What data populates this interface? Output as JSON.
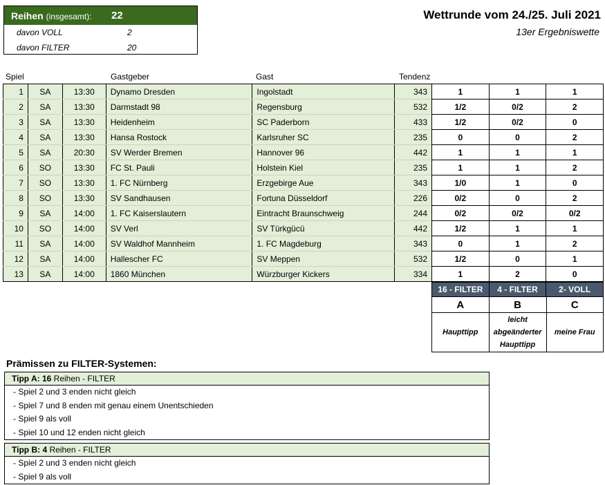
{
  "summary": {
    "label_bold": "Reihen",
    "label_small": "(insgesamt):",
    "total": "22",
    "rows": [
      {
        "label": "davon VOLL",
        "value": "2"
      },
      {
        "label": "davon FILTER",
        "value": "20"
      }
    ]
  },
  "title": "Wettrunde vom 24./25. Juli 2021",
  "subtitle": "13er Ergebniswette",
  "columns": {
    "spiel": "Spiel",
    "gastgeber": "Gastgeber",
    "gast": "Gast",
    "tendenz": "Tendenz"
  },
  "games": [
    {
      "nr": "1",
      "day": "SA",
      "time": "13:30",
      "home": "Dynamo Dresden",
      "away": "Ingolstadt",
      "tendenz": "343",
      "tips": [
        "1",
        "1",
        "1"
      ]
    },
    {
      "nr": "2",
      "day": "SA",
      "time": "13:30",
      "home": "Darmstadt 98",
      "away": "Regensburg",
      "tendenz": "532",
      "tips": [
        "1/2",
        "0/2",
        "2"
      ]
    },
    {
      "nr": "3",
      "day": "SA",
      "time": "13:30",
      "home": "Heidenheim",
      "away": "SC Paderborn",
      "tendenz": "433",
      "tips": [
        "1/2",
        "0/2",
        "0"
      ]
    },
    {
      "nr": "4",
      "day": "SA",
      "time": "13:30",
      "home": "Hansa Rostock",
      "away": "Karlsruher SC",
      "tendenz": "235",
      "tips": [
        "0",
        "0",
        "2"
      ]
    },
    {
      "nr": "5",
      "day": "SA",
      "time": "20:30",
      "home": "SV Werder Bremen",
      "away": "Hannover 96",
      "tendenz": "442",
      "tips": [
        "1",
        "1",
        "1"
      ]
    },
    {
      "nr": "6",
      "day": "SO",
      "time": "13:30",
      "home": "FC St. Pauli",
      "away": "Holstein Kiel",
      "tendenz": "235",
      "tips": [
        "1",
        "1",
        "2"
      ]
    },
    {
      "nr": "7",
      "day": "SO",
      "time": "13:30",
      "home": "1. FC Nürnberg",
      "away": "Erzgebirge Aue",
      "tendenz": "343",
      "tips": [
        "1/0",
        "1",
        "0"
      ]
    },
    {
      "nr": "8",
      "day": "SO",
      "time": "13:30",
      "home": "SV Sandhausen",
      "away": "Fortuna Düsseldorf",
      "tendenz": "226",
      "tips": [
        "0/2",
        "0",
        "2"
      ]
    },
    {
      "nr": "9",
      "day": "SA",
      "time": "14:00",
      "home": "1. FC Kaiserslautern",
      "away": "Eintracht Braunschweig",
      "tendenz": "244",
      "tips": [
        "0/2",
        "0/2",
        "0/2"
      ]
    },
    {
      "nr": "10",
      "day": "SO",
      "time": "14:00",
      "home": "SV Verl",
      "away": "SV Türkgücü",
      "tendenz": "442",
      "tips": [
        "1/2",
        "1",
        "1"
      ]
    },
    {
      "nr": "11",
      "day": "SA",
      "time": "14:00",
      "home": "SV Waldhof Mannheim",
      "away": "1. FC Magdeburg",
      "tendenz": "343",
      "tips": [
        "0",
        "1",
        "2"
      ]
    },
    {
      "nr": "12",
      "day": "SA",
      "time": "14:00",
      "home": "Hallescher FC",
      "away": "SV Meppen",
      "tendenz": "532",
      "tips": [
        "1/2",
        "0",
        "1"
      ]
    },
    {
      "nr": "13",
      "day": "SA",
      "time": "14:00",
      "home": "1860 München",
      "away": "Würzburger Kickers",
      "tendenz": "334",
      "tips": [
        "1",
        "2",
        "0"
      ]
    }
  ],
  "systems": [
    {
      "header": "16 - FILTER",
      "letter": "A",
      "desc": [
        "",
        "Haupttipp",
        ""
      ]
    },
    {
      "header": "4 - FILTER",
      "letter": "B",
      "desc": [
        "leicht",
        "abgeänderter",
        "Haupttipp"
      ]
    },
    {
      "header": "2- VOLL",
      "letter": "C",
      "desc": [
        "",
        "meine Frau",
        ""
      ]
    }
  ],
  "premises": {
    "title": "Prämissen zu FILTER-Systemen:",
    "boxes": [
      {
        "head_bold": "Tipp A: 16",
        "head_rest": " Reihen - FILTER",
        "lines": [
          "- Spiel 2 und 3 enden nicht gleich",
          "- Spiel 7 und 8 enden mit genau einem Unentschieden",
          "- Spiel 9 als voll",
          "- Spiel 10 und 12 enden nicht gleich"
        ]
      },
      {
        "head_bold": "Tipp B: 4",
        "head_rest": " Reihen - FILTER",
        "lines": [
          "- Spiel 2 und 3 enden nicht gleich",
          "- Spiel 9 als voll"
        ]
      }
    ]
  },
  "colors": {
    "summary_header": "#3a6a1e",
    "row_fill": "#e3efd9",
    "system_header": "#4b596e"
  }
}
